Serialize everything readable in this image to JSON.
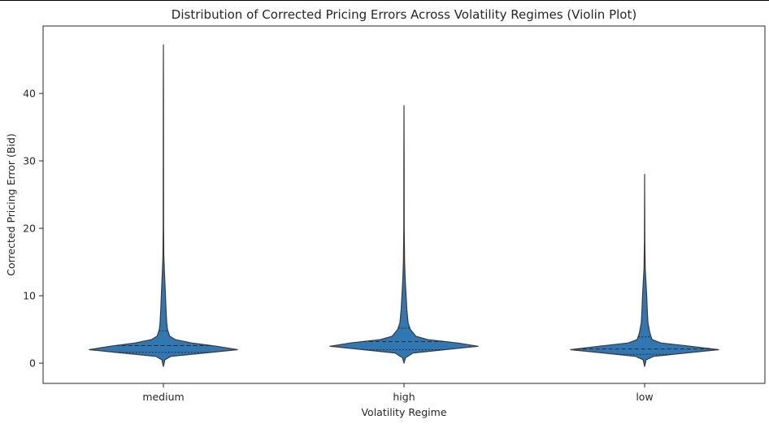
{
  "chart_data": {
    "type": "violin",
    "title": "Distribution of Corrected Pricing Errors Across Volatility Regimes (Violin Plot)",
    "xlabel": "Volatility Regime",
    "ylabel": "Corrected Pricing Error (Bid)",
    "categories": [
      "medium",
      "high",
      "low"
    ],
    "ylim": [
      -3,
      50
    ],
    "yticks": [
      0,
      10,
      20,
      30,
      40
    ],
    "grid": false,
    "fill_color": "#2f78b4",
    "edge_color": "#3a3a3a",
    "violins": [
      {
        "category": "medium",
        "min": -0.5,
        "max": 47.2,
        "q1": 1.6,
        "median": 2.6,
        "q3": 4.8,
        "profile": [
          [
            -0.5,
            0.0
          ],
          [
            0.5,
            0.02
          ],
          [
            1.0,
            0.1
          ],
          [
            1.5,
            0.55
          ],
          [
            2.0,
            1.0
          ],
          [
            2.5,
            0.72
          ],
          [
            3.0,
            0.38
          ],
          [
            3.5,
            0.16
          ],
          [
            4.0,
            0.085
          ],
          [
            5.0,
            0.055
          ],
          [
            6.0,
            0.045
          ],
          [
            8.0,
            0.035
          ],
          [
            10.0,
            0.028
          ],
          [
            12.0,
            0.02
          ],
          [
            14.0,
            0.012
          ],
          [
            16.0,
            0.006
          ],
          [
            20.0,
            0.003
          ],
          [
            30.0,
            0.002
          ],
          [
            40.0,
            0.0015
          ],
          [
            47.2,
            0.0
          ]
        ]
      },
      {
        "category": "high",
        "min": 0.0,
        "max": 38.2,
        "q1": 2.0,
        "median": 3.2,
        "q3": 5.2,
        "profile": [
          [
            0.0,
            0.0
          ],
          [
            0.8,
            0.02
          ],
          [
            1.5,
            0.12
          ],
          [
            2.0,
            0.55
          ],
          [
            2.5,
            1.0
          ],
          [
            3.0,
            0.72
          ],
          [
            3.5,
            0.32
          ],
          [
            4.0,
            0.16
          ],
          [
            5.0,
            0.085
          ],
          [
            6.0,
            0.055
          ],
          [
            8.0,
            0.038
          ],
          [
            10.0,
            0.028
          ],
          [
            12.0,
            0.018
          ],
          [
            15.0,
            0.008
          ],
          [
            20.0,
            0.003
          ],
          [
            30.0,
            0.002
          ],
          [
            38.2,
            0.0
          ]
        ]
      },
      {
        "category": "low",
        "min": -0.5,
        "max": 28.0,
        "q1": 1.3,
        "median": 2.1,
        "q3": 3.9,
        "profile": [
          [
            -0.5,
            0.0
          ],
          [
            0.5,
            0.02
          ],
          [
            1.0,
            0.12
          ],
          [
            1.5,
            0.55
          ],
          [
            2.0,
            1.0
          ],
          [
            2.5,
            0.62
          ],
          [
            3.0,
            0.22
          ],
          [
            3.5,
            0.1
          ],
          [
            4.5,
            0.07
          ],
          [
            6.0,
            0.045
          ],
          [
            8.0,
            0.035
          ],
          [
            10.0,
            0.028
          ],
          [
            12.0,
            0.018
          ],
          [
            14.0,
            0.008
          ],
          [
            18.0,
            0.003
          ],
          [
            28.0,
            0.0
          ]
        ]
      }
    ]
  }
}
